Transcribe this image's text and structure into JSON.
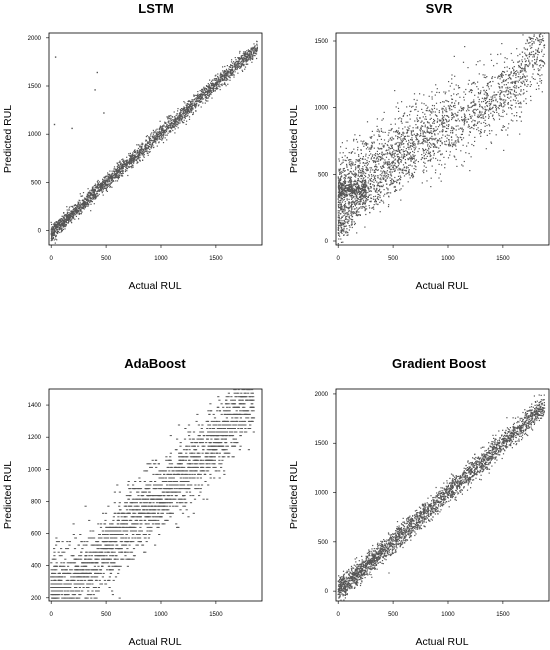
{
  "figure": {
    "point_color": "#555555",
    "background_color": "#ffffff"
  },
  "chart_data": [
    {
      "type": "scatter",
      "title": "LSTM",
      "xlabel": "Actual RUL",
      "ylabel": "Predicted RUL",
      "xlim": [
        -20,
        1920
      ],
      "ylim": [
        -150,
        2050
      ],
      "xticks": [
        0,
        500,
        1000,
        1500
      ],
      "yticks": [
        0,
        500,
        1000,
        1500,
        2000
      ],
      "grid": false,
      "pattern": "tight diagonal band, predicted ≈ actual, with a few outliers",
      "series": [
        {
          "x": [
            0,
            200,
            400,
            600,
            800,
            1000,
            1200,
            1400,
            1600,
            1800,
            1880
          ],
          "y": [
            -30,
            180,
            390,
            600,
            800,
            1010,
            1210,
            1420,
            1620,
            1820,
            1880
          ]
        }
      ],
      "outliers": [
        {
          "x": 40,
          "y": 1800
        },
        {
          "x": 420,
          "y": 1640
        },
        {
          "x": 400,
          "y": 1460
        },
        {
          "x": 30,
          "y": 1100
        },
        {
          "x": 190,
          "y": 1060
        },
        {
          "x": 480,
          "y": 1220
        }
      ]
    },
    {
      "type": "scatter",
      "title": "SVR",
      "xlabel": "Actual RUL",
      "ylabel": "Predicted RUL",
      "xlim": [
        -20,
        1920
      ],
      "ylim": [
        -30,
        1560
      ],
      "xticks": [
        0,
        500,
        1000,
        1500
      ],
      "yticks": [
        0,
        500,
        1000,
        1500
      ],
      "grid": false,
      "pattern": "wide scattered band with a high-offset cluster near predicted ≈ 380 at low actual RUL",
      "series": [
        {
          "x": [
            0,
            200,
            400,
            600,
            800,
            1000,
            1200,
            1400,
            1600,
            1800,
            1880
          ],
          "y": [
            380,
            520,
            620,
            700,
            780,
            860,
            950,
            1040,
            1160,
            1440,
            1440
          ]
        }
      ]
    },
    {
      "type": "scatter",
      "title": "AdaBoost",
      "xlabel": "Actual RUL",
      "ylabel": "Predicted RUL",
      "xlim": [
        -20,
        1920
      ],
      "ylim": [
        180,
        1500
      ],
      "xticks": [
        0,
        500,
        1000,
        1500
      ],
      "yticks": [
        200,
        400,
        600,
        800,
        1000,
        1200,
        1400
      ],
      "grid": false,
      "pattern": "step-like horizontal bands rising with actual RUL",
      "series": [
        {
          "x": [
            0,
            200,
            400,
            600,
            800,
            1000,
            1200,
            1400,
            1600,
            1800,
            1850
          ],
          "y": [
            240,
            300,
            420,
            560,
            720,
            820,
            980,
            1100,
            1260,
            1440,
            1460
          ]
        }
      ]
    },
    {
      "type": "scatter",
      "title": "Gradient Boost",
      "xlabel": "Actual RUL",
      "ylabel": "Predicted RUL",
      "xlim": [
        -20,
        1920
      ],
      "ylim": [
        -100,
        2050
      ],
      "xticks": [
        0,
        500,
        1000,
        1500
      ],
      "yticks": [
        0,
        500,
        1000,
        1500,
        2000
      ],
      "grid": false,
      "pattern": "tight diagonal band, predicted ≈ actual, slightly wider than LSTM",
      "series": [
        {
          "x": [
            0,
            200,
            400,
            600,
            800,
            1000,
            1200,
            1400,
            1600,
            1800,
            1880
          ],
          "y": [
            10,
            200,
            400,
            600,
            800,
            1000,
            1200,
            1400,
            1600,
            1800,
            1880
          ]
        }
      ]
    }
  ]
}
